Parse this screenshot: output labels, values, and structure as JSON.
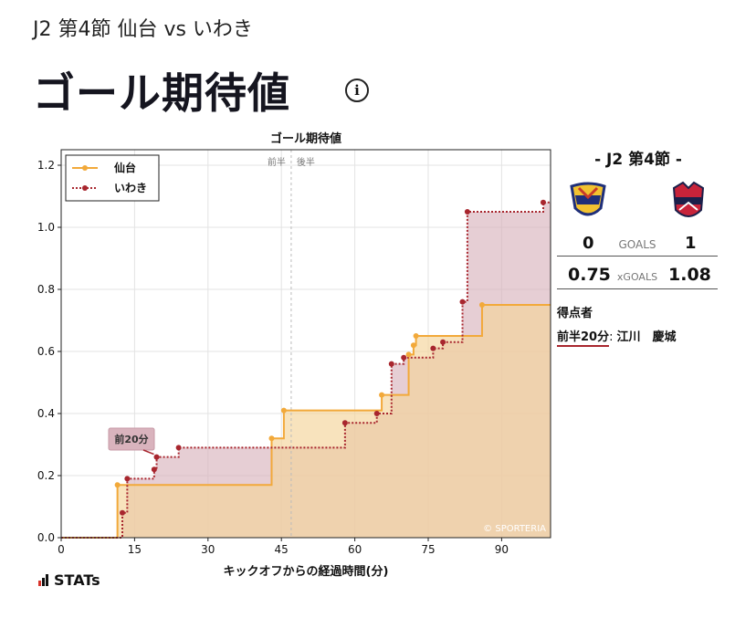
{
  "header": {
    "subtitle": "J2 第4節 仙台 vs いわき",
    "title": "ゴール期待値",
    "info_icon": "info-circle-icon"
  },
  "chart_data": {
    "type": "line",
    "step": true,
    "title": "ゴール期待値",
    "xlabel": "キックオフからの経過時間(分)",
    "ylabel": "",
    "xlim": [
      0,
      100
    ],
    "ylim": [
      0,
      1.25
    ],
    "xticks": [
      0,
      15,
      30,
      45,
      60,
      75,
      90
    ],
    "yticks": [
      0.0,
      0.2,
      0.4,
      0.6,
      0.8,
      1.0,
      1.2
    ],
    "grid": true,
    "legend_position": "top-left",
    "half_line_x": 47,
    "half_labels": [
      "前半",
      "後半"
    ],
    "watermark": "© SPORTERIA",
    "series": [
      {
        "name": "仙台",
        "color": "#f2a93a",
        "fill": "#f5d49a",
        "style": "solid",
        "points": [
          [
            11.5,
            0.17
          ],
          [
            43,
            0.32
          ],
          [
            45.5,
            0.41
          ],
          [
            65.5,
            0.46
          ],
          [
            71,
            0.59
          ],
          [
            72,
            0.62
          ],
          [
            72.5,
            0.65
          ],
          [
            86,
            0.75
          ],
          [
            100,
            0.75
          ]
        ]
      },
      {
        "name": "いわき",
        "color": "#a8262e",
        "fill": "#d9b3bd",
        "style": "dotted",
        "points": [
          [
            12.5,
            0.08
          ],
          [
            13.5,
            0.19
          ],
          [
            19,
            0.22
          ],
          [
            19.5,
            0.26
          ],
          [
            24,
            0.29
          ],
          [
            58,
            0.37
          ],
          [
            64.5,
            0.4
          ],
          [
            67.5,
            0.56
          ],
          [
            70,
            0.58
          ],
          [
            76,
            0.61
          ],
          [
            78,
            0.63
          ],
          [
            82,
            0.76
          ],
          [
            83,
            1.05
          ],
          [
            98.5,
            1.08
          ],
          [
            100,
            1.08
          ]
        ]
      }
    ],
    "annotations": [
      {
        "text": "前20分",
        "x": 19.5,
        "y": 0.26,
        "series": "いわき"
      }
    ]
  },
  "sidebar": {
    "title": "- J2 第4節 -",
    "home_logo": "vegalta-crest-icon",
    "away_logo": "iwaki-fc-crest-icon",
    "goals": {
      "home": "0",
      "label": "GOALS",
      "away": "1"
    },
    "xgoals": {
      "home": "0.75",
      "label": "xGOALS",
      "away": "1.08"
    },
    "scorers_title": "得点者",
    "scorers": [
      {
        "when": "前半20分",
        "sep": ":",
        "names": "江川　慶城"
      }
    ]
  },
  "footer": {
    "brand": "STATs"
  }
}
